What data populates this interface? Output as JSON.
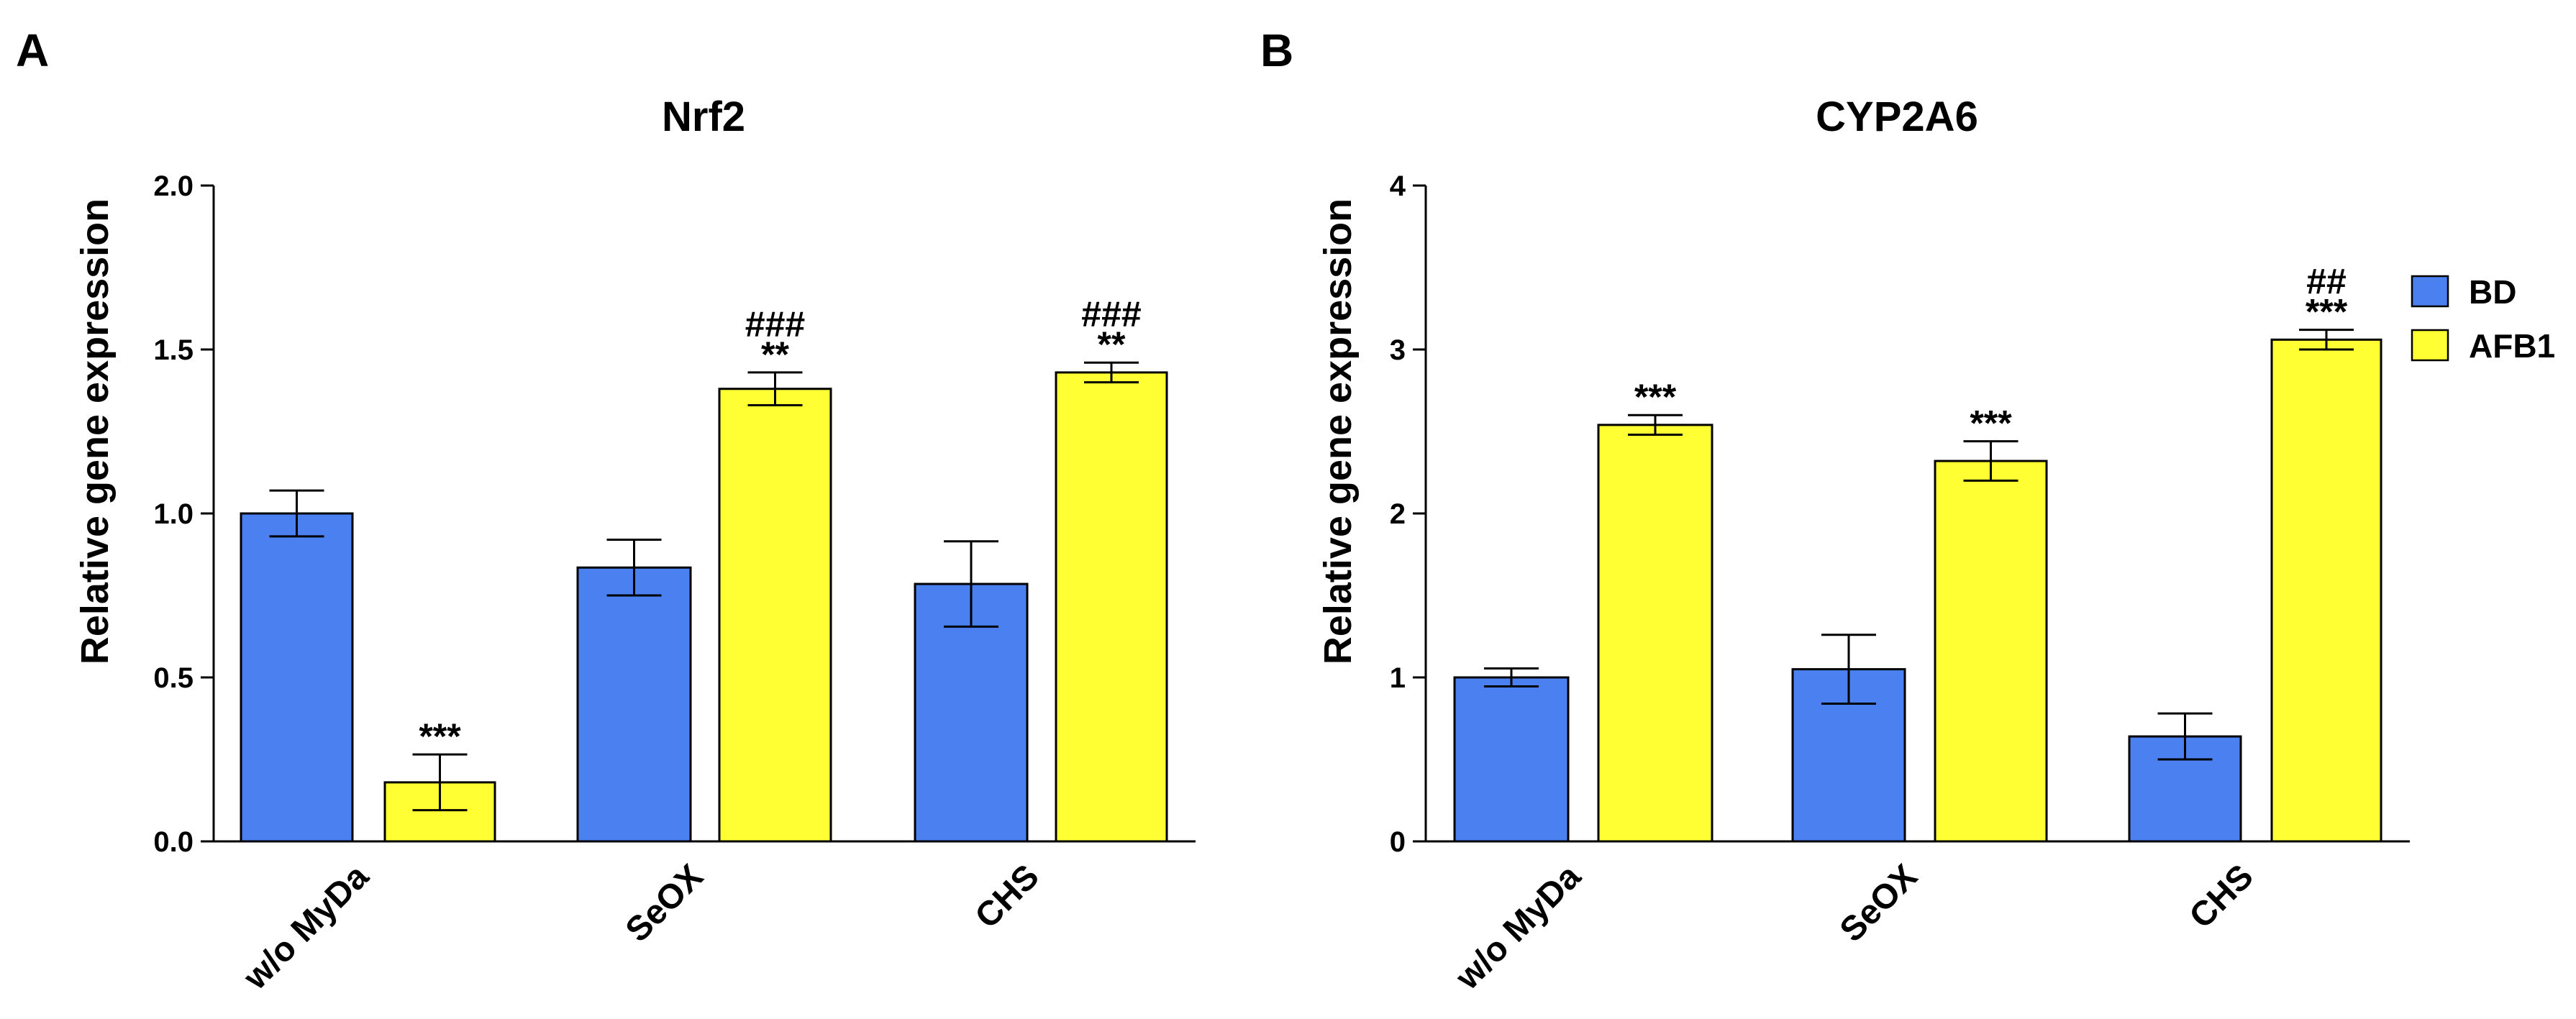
{
  "legend": [
    {
      "name": "BD",
      "color": "#4a80f0"
    },
    {
      "name": "AFB1",
      "color": "#ffff33"
    }
  ],
  "chart_data": [
    {
      "type": "bar",
      "panel": "A",
      "title": "Nrf2",
      "xlabel": "",
      "ylabel": "Relative gene expression",
      "ylim": [
        0,
        2.0
      ],
      "yticks": [
        "0.0",
        "0.5",
        "1.0",
        "1.5",
        "2.0"
      ],
      "ytick_values": [
        0,
        0.5,
        1.0,
        1.5,
        2.0
      ],
      "categories": [
        "w/o MyDa",
        "SeOX",
        "CHS"
      ],
      "series": [
        {
          "name": "BD",
          "values": [
            1.0,
            0.835,
            0.785
          ],
          "errors": [
            0.07,
            0.085,
            0.13
          ],
          "sig": [
            "",
            "",
            ""
          ],
          "sig2": [
            "",
            "",
            ""
          ]
        },
        {
          "name": "AFB1",
          "values": [
            0.18,
            1.38,
            1.43
          ],
          "errors": [
            0.085,
            0.05,
            0.03
          ],
          "sig": [
            "***",
            "**",
            "**"
          ],
          "sig2": [
            "",
            "###",
            "###"
          ]
        }
      ]
    },
    {
      "type": "bar",
      "panel": "B",
      "title": "CYP2A6",
      "xlabel": "",
      "ylabel": "Relative gene expression",
      "ylim": [
        0,
        4
      ],
      "yticks": [
        "0",
        "1",
        "2",
        "3",
        "4"
      ],
      "ytick_values": [
        0,
        1,
        2,
        3,
        4
      ],
      "categories": [
        "w/o MyDa",
        "SeOX",
        "CHS"
      ],
      "series": [
        {
          "name": "BD",
          "values": [
            1.0,
            1.05,
            0.64
          ],
          "errors": [
            0.055,
            0.21,
            0.14
          ],
          "sig": [
            "",
            "",
            ""
          ],
          "sig2": [
            "",
            "",
            ""
          ]
        },
        {
          "name": "AFB1",
          "values": [
            2.54,
            2.32,
            3.06
          ],
          "errors": [
            0.06,
            0.12,
            0.06
          ],
          "sig": [
            "***",
            "***",
            "***"
          ],
          "sig2": [
            "",
            "",
            "##"
          ]
        }
      ]
    }
  ]
}
